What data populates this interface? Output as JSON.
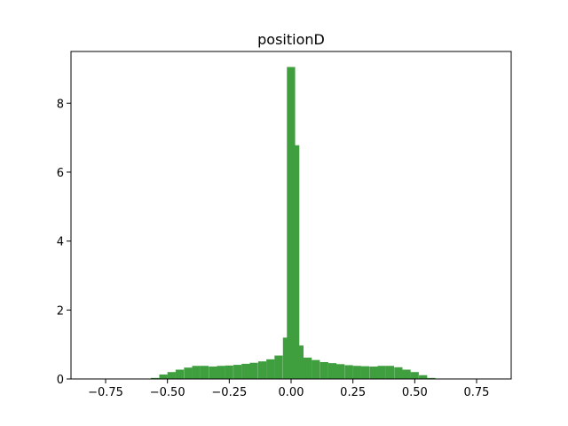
{
  "chart_data": {
    "type": "bar",
    "title": "positionD",
    "xlabel": "",
    "ylabel": "",
    "xlim": [
      -0.89,
      0.89
    ],
    "ylim": [
      0,
      9.5
    ],
    "bar_color": "#3f9f3f",
    "xticks": [
      -0.75,
      -0.5,
      -0.25,
      0.0,
      0.25,
      0.5,
      0.75
    ],
    "xtick_labels": [
      "−0.75",
      "−0.50",
      "−0.25",
      "0.00",
      "0.25",
      "0.50",
      "0.75"
    ],
    "yticks": [
      0,
      2,
      4,
      6,
      8
    ],
    "ytick_labels": [
      "0",
      "2",
      "4",
      "6",
      "8"
    ],
    "bin_width": 0.0333,
    "bins": [
      {
        "x0": -0.567,
        "value": 0.03
      },
      {
        "x0": -0.533,
        "value": 0.13
      },
      {
        "x0": -0.5,
        "value": 0.2
      },
      {
        "x0": -0.467,
        "value": 0.27
      },
      {
        "x0": -0.433,
        "value": 0.33
      },
      {
        "x0": -0.4,
        "value": 0.38
      },
      {
        "x0": -0.367,
        "value": 0.38
      },
      {
        "x0": -0.333,
        "value": 0.36
      },
      {
        "x0": -0.3,
        "value": 0.38
      },
      {
        "x0": -0.267,
        "value": 0.39
      },
      {
        "x0": -0.233,
        "value": 0.41
      },
      {
        "x0": -0.2,
        "value": 0.44
      },
      {
        "x0": -0.167,
        "value": 0.47
      },
      {
        "x0": -0.133,
        "value": 0.51
      },
      {
        "x0": -0.1,
        "value": 0.57
      },
      {
        "x0": -0.067,
        "value": 0.68
      },
      {
        "x0": -0.033,
        "value": 1.2
      },
      {
        "x0": -0.017,
        "value": 9.05
      },
      {
        "x0": 0.0,
        "value": 6.78
      },
      {
        "x0": 0.017,
        "value": 0.97
      },
      {
        "x0": 0.05,
        "value": 0.62
      },
      {
        "x0": 0.083,
        "value": 0.55
      },
      {
        "x0": 0.117,
        "value": 0.49
      },
      {
        "x0": 0.15,
        "value": 0.46
      },
      {
        "x0": 0.183,
        "value": 0.43
      },
      {
        "x0": 0.217,
        "value": 0.4
      },
      {
        "x0": 0.25,
        "value": 0.38
      },
      {
        "x0": 0.283,
        "value": 0.37
      },
      {
        "x0": 0.317,
        "value": 0.36
      },
      {
        "x0": 0.35,
        "value": 0.38
      },
      {
        "x0": 0.383,
        "value": 0.38
      },
      {
        "x0": 0.417,
        "value": 0.34
      },
      {
        "x0": 0.45,
        "value": 0.27
      },
      {
        "x0": 0.483,
        "value": 0.2
      },
      {
        "x0": 0.517,
        "value": 0.11
      },
      {
        "x0": 0.55,
        "value": 0.03
      }
    ]
  }
}
